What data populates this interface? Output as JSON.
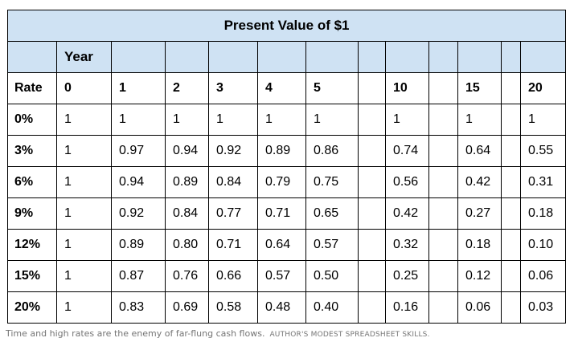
{
  "table": {
    "title": "Present Value of $1",
    "year_label": "Year",
    "rate_label": "Rate",
    "years": [
      "0",
      "1",
      "2",
      "3",
      "4",
      "5",
      "",
      "10",
      "",
      "15",
      "",
      "20"
    ],
    "rows": [
      {
        "rate": "0%",
        "values": [
          "1",
          "1",
          "1",
          "1",
          "1",
          "1",
          "",
          "1",
          "",
          "1",
          "",
          "1"
        ]
      },
      {
        "rate": "3%",
        "values": [
          "1",
          "0.97",
          "0.94",
          "0.92",
          "0.89",
          "0.86",
          "",
          "0.74",
          "",
          "0.64",
          "",
          "0.55"
        ]
      },
      {
        "rate": "6%",
        "values": [
          "1",
          "0.94",
          "0.89",
          "0.84",
          "0.79",
          "0.75",
          "",
          "0.56",
          "",
          "0.42",
          "",
          "0.31"
        ]
      },
      {
        "rate": "9%",
        "values": [
          "1",
          "0.92",
          "0.84",
          "0.77",
          "0.71",
          "0.65",
          "",
          "0.42",
          "",
          "0.27",
          "",
          "0.18"
        ]
      },
      {
        "rate": "12%",
        "values": [
          "1",
          "0.89",
          "0.80",
          "0.71",
          "0.64",
          "0.57",
          "",
          "0.32",
          "",
          "0.18",
          "",
          "0.10"
        ]
      },
      {
        "rate": "15%",
        "values": [
          "1",
          "0.87",
          "0.76",
          "0.66",
          "0.57",
          "0.50",
          "",
          "0.25",
          "",
          "0.12",
          "",
          "0.06"
        ]
      },
      {
        "rate": "20%",
        "values": [
          "1",
          "0.83",
          "0.69",
          "0.58",
          "0.48",
          "0.40",
          "",
          "0.16",
          "",
          "0.06",
          "",
          "0.03"
        ]
      }
    ]
  },
  "caption": {
    "text": "Time and high rates are the enemy of far-flung cash flows.",
    "credit": "AUTHOR'S MODEST SPREADSHEET SKILLS."
  }
}
